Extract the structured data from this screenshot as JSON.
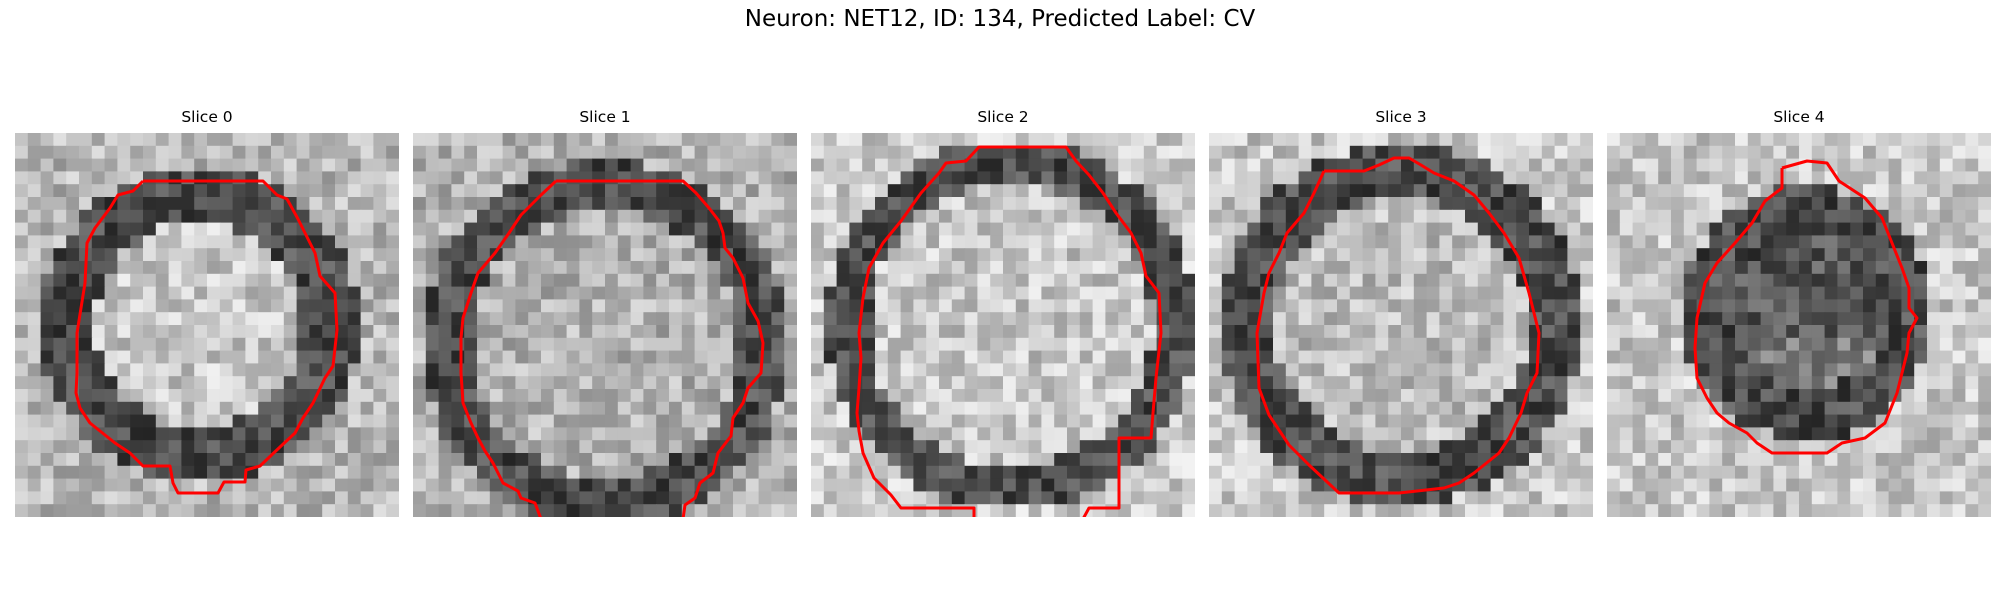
{
  "figure": {
    "title": "Neuron: NET12, ID: 134, Predicted Label: CV"
  },
  "colors": {
    "contour": "#ff0000",
    "background": "#ffffff",
    "colormap": "grayscale"
  },
  "panels": [
    {
      "title": "Slice 0"
    },
    {
      "title": "Slice 1"
    },
    {
      "title": "Slice 2"
    },
    {
      "title": "Slice 3"
    },
    {
      "title": "Slice 4"
    }
  ]
}
